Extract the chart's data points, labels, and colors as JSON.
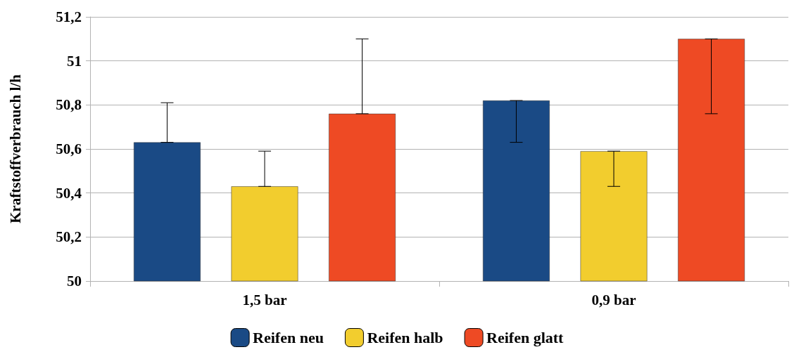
{
  "chart_data": {
    "type": "bar",
    "ylabel": "Kraftstoffverbrauch l/h",
    "categories": [
      "1,5 bar",
      "0,9 bar"
    ],
    "series": [
      {
        "name": "Reifen neu",
        "color": "#1a4a85",
        "values": [
          50.63,
          50.82
        ],
        "errors": [
          [
            50.63,
            50.81
          ],
          [
            50.63,
            50.82
          ]
        ]
      },
      {
        "name": "Reifen halb",
        "color": "#f2cd2e",
        "values": [
          50.43,
          50.59
        ],
        "errors": [
          [
            50.43,
            50.59
          ],
          [
            50.43,
            50.59
          ]
        ]
      },
      {
        "name": "Reifen glatt",
        "color": "#ee4a24",
        "values": [
          50.76,
          51.1
        ],
        "errors": [
          [
            50.76,
            51.1
          ],
          [
            50.76,
            51.1
          ]
        ]
      }
    ],
    "ylim": [
      50,
      51.2
    ],
    "yticks": [
      {
        "value": 50,
        "label": "50"
      },
      {
        "value": 50.2,
        "label": "50,2"
      },
      {
        "value": 50.4,
        "label": "50,4"
      },
      {
        "value": 50.6,
        "label": "50,6"
      },
      {
        "value": 50.8,
        "label": "50,8"
      },
      {
        "value": 51,
        "label": "51"
      },
      {
        "value": 51.2,
        "label": "51,2"
      }
    ],
    "grid": "y",
    "legend": "bottom"
  }
}
